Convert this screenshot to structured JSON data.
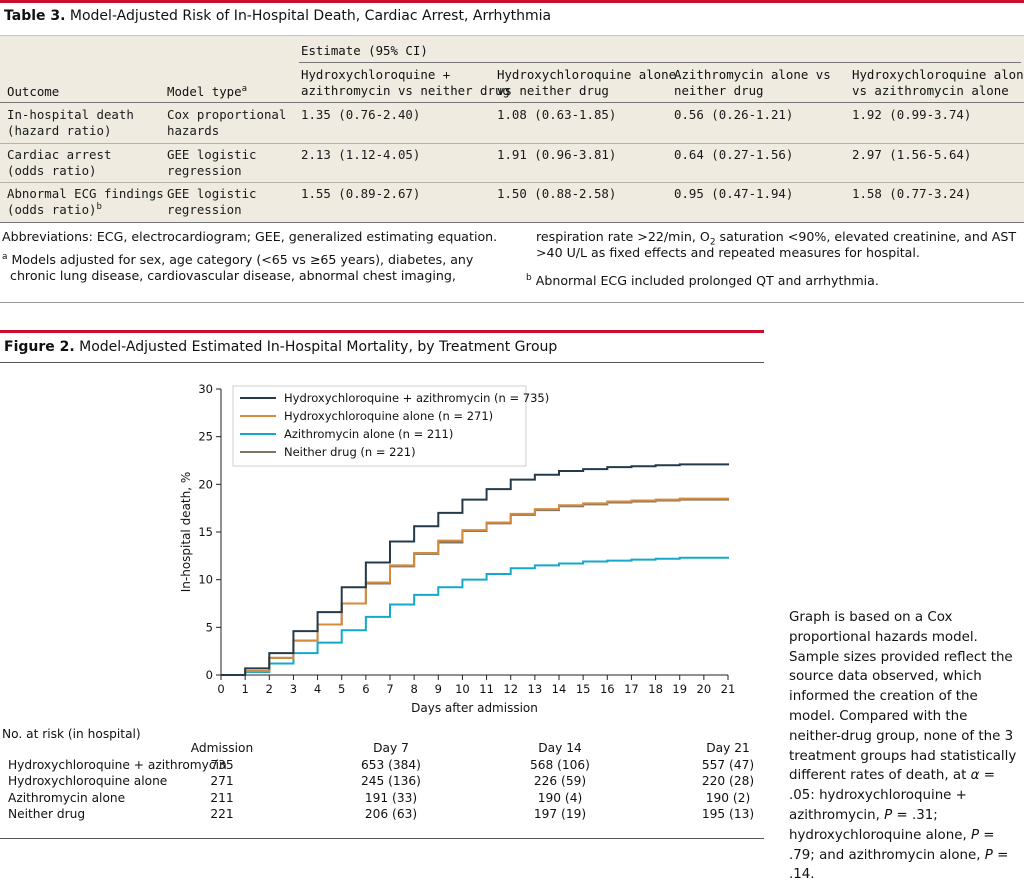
{
  "table3": {
    "caption_label": "Table 3.",
    "caption_text": " Model-Adjusted Risk of In-Hospital Death, Cardiac Arrest, Arrhythmia",
    "estimate_header": "Estimate (95% CI)",
    "col_outcome": "Outcome",
    "col_model_type": "Model type",
    "col_model_type_sup": "a",
    "col_hcq_azm_1": "Hydroxychloroquine +",
    "col_hcq_azm_2": "azithromycin vs neither drug",
    "col_hcq_1": "Hydroxychloroquine alone",
    "col_hcq_2": "vs neither drug",
    "col_azm_1": "Azithromycin alone vs",
    "col_azm_2": "neither drug",
    "col_hcq_vs_azm_1": "Hydroxychloroquine alone",
    "col_hcq_vs_azm_2": "vs azithromycin alone",
    "rows": [
      {
        "outcome_1": "In-hospital death",
        "outcome_2": "(hazard ratio)",
        "outcome_sup": "",
        "model_1": "Cox proportional",
        "model_2": "hazards",
        "v1": "1.35 (0.76-2.40)",
        "v2": "1.08 (0.63-1.85)",
        "v3": "0.56 (0.26-1.21)",
        "v4": "1.92 (0.99-3.74)"
      },
      {
        "outcome_1": "Cardiac arrest",
        "outcome_2": "(odds ratio)",
        "outcome_sup": "",
        "model_1": "GEE logistic",
        "model_2": "regression",
        "v1": "2.13 (1.12-4.05)",
        "v2": "1.91 (0.96-3.81)",
        "v3": "0.64 (0.27-1.56)",
        "v4": "2.97 (1.56-5.64)"
      },
      {
        "outcome_1": "Abnormal ECG findings",
        "outcome_2": "(odds ratio)",
        "outcome_sup": "b",
        "model_1": "GEE logistic",
        "model_2": "regression",
        "v1": "1.55 (0.89-2.67)",
        "v2": "1.50 (0.88-2.58)",
        "v3": "0.95 (0.47-1.94)",
        "v4": "1.58 (0.77-3.24)"
      }
    ],
    "abbrev": "Abbreviations: ECG, electrocardiogram; GEE, generalized estimating equation.",
    "fn_a_mark": "a",
    "fn_a_line1": " Models adjusted for sex, age category (<65 vs ≥65 years), diabetes, any",
    "fn_a_line2": "chronic lung disease, cardiovascular disease, abnormal chest imaging,",
    "fn_a_line3_pre": "respiration rate >22/min, O",
    "fn_a_line3_sub": "2",
    "fn_a_line3_post": " saturation <90%, elevated creatinine, and AST",
    "fn_a_line4": ">40 U/L as fixed effects and repeated measures for hospital.",
    "fn_b_mark": "b",
    "fn_b_text": " Abnormal ECG included prolonged QT and arrhythmia."
  },
  "figure2": {
    "caption_label": "Figure 2.",
    "caption_text": " Model-Adjusted Estimated In-Hospital Mortality, by Treatment Group",
    "risk_table": {
      "title": "No. at risk (in hospital)",
      "headers": [
        "Admission",
        "Day 7",
        "Day 14",
        "Day 21"
      ],
      "rows": [
        {
          "label": "Hydroxychloroquine + azithromycin",
          "values": [
            "735",
            "653 (384)",
            "568 (106)",
            "557 (47)"
          ]
        },
        {
          "label": "Hydroxychloroquine alone",
          "values": [
            "271",
            "245 (136)",
            "226 (59)",
            "220 (28)"
          ]
        },
        {
          "label": "Azithromycin alone",
          "values": [
            "211",
            "191 (33)",
            "190 (4)",
            "190 (2)"
          ]
        },
        {
          "label": "Neither drug",
          "values": [
            "221",
            "206 (63)",
            "197 (19)",
            "195 (13)"
          ]
        }
      ]
    },
    "note_a": "Graph is based on a Cox proportional hazards model. Sample sizes provided reflect the source data observed, which informed the creation of the model. Compared with the neither-drug group, none of the 3 treatment groups had statistically different rates of death, at ",
    "note_alpha": "α",
    "note_b": " = .05: hydroxychloroquine + azithromycin, ",
    "note_p1": "P",
    "note_c": " = .31; hydroxychloroquine alone, ",
    "note_p2": "P",
    "note_d": " = .79; and azithromycin alone, ",
    "note_p3": "P",
    "note_e": " = .14."
  },
  "colors": {
    "accent_red": "#c8102e",
    "table_bg": "#efebe1",
    "hcq_azm": "#243a4a",
    "hcq": "#d58a3c",
    "azm": "#14a9cc",
    "neither": "#7f7366"
  },
  "chart_data": {
    "type": "line",
    "step": true,
    "title": "Model-Adjusted Estimated In-Hospital Mortality, by Treatment Group",
    "xlabel": "Days after admission",
    "ylabel": "In-hospital death, %",
    "xlim": [
      0,
      21
    ],
    "ylim": [
      0,
      30
    ],
    "xticks": [
      0,
      1,
      2,
      3,
      4,
      5,
      6,
      7,
      8,
      9,
      10,
      11,
      12,
      13,
      14,
      15,
      16,
      17,
      18,
      19,
      20,
      21
    ],
    "yticks": [
      0,
      5,
      10,
      15,
      20,
      25,
      30
    ],
    "legend_position": "top-left",
    "x": [
      0,
      1,
      2,
      3,
      4,
      5,
      6,
      7,
      8,
      9,
      10,
      11,
      12,
      13,
      14,
      15,
      16,
      17,
      18,
      19,
      20,
      21
    ],
    "series": [
      {
        "name": "Hydroxychloroquine + azithromycin (n = 735)",
        "color": "#243a4a",
        "values": [
          0,
          0.7,
          2.3,
          4.6,
          6.6,
          9.2,
          11.8,
          14.0,
          15.6,
          17.0,
          18.4,
          19.5,
          20.5,
          21.0,
          21.4,
          21.6,
          21.8,
          21.9,
          22.0,
          22.1,
          22.1,
          22.2
        ]
      },
      {
        "name": "Hydroxychloroquine alone (n = 271)",
        "color": "#d58a3c",
        "values": [
          0,
          0.4,
          1.8,
          3.6,
          5.3,
          7.5,
          9.7,
          11.5,
          12.8,
          14.1,
          15.2,
          16.0,
          16.9,
          17.4,
          17.8,
          18.0,
          18.2,
          18.3,
          18.4,
          18.5,
          18.5,
          18.6
        ]
      },
      {
        "name": "Azithromycin alone (n = 211)",
        "color": "#14a9cc",
        "values": [
          0,
          0.3,
          1.2,
          2.3,
          3.4,
          4.7,
          6.1,
          7.4,
          8.4,
          9.2,
          10.0,
          10.6,
          11.2,
          11.5,
          11.7,
          11.9,
          12.0,
          12.1,
          12.2,
          12.3,
          12.3,
          12.4
        ]
      },
      {
        "name": "Neither drug (n = 221)",
        "color": "#7f7366",
        "values": [
          0,
          0.4,
          1.8,
          3.6,
          5.3,
          7.5,
          9.6,
          11.4,
          12.7,
          13.9,
          15.1,
          15.9,
          16.8,
          17.3,
          17.7,
          17.9,
          18.1,
          18.2,
          18.3,
          18.4,
          18.4,
          18.5
        ]
      }
    ]
  }
}
